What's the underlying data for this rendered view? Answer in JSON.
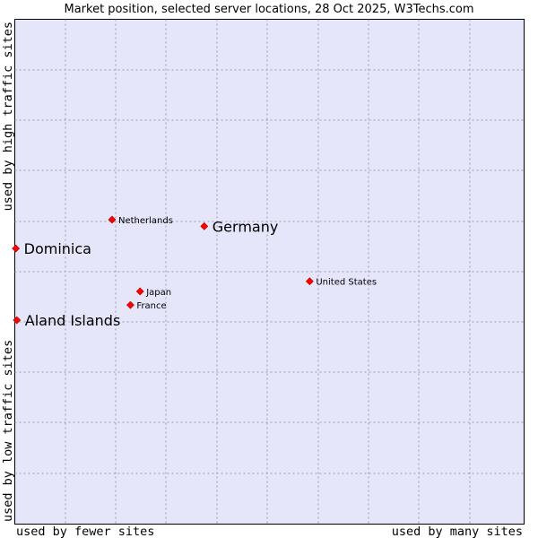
{
  "chart_data": {
    "type": "scatter",
    "title": "Market position, selected server locations, 28 Oct 2025, W3Techs.com",
    "xlabel_low": "used by fewer sites",
    "xlabel_high": "used by many sites",
    "ylabel_low": "used by low traffic sites",
    "ylabel_high": "used by high traffic sites",
    "xlim": [
      0,
      1
    ],
    "ylim": [
      0,
      1
    ],
    "grid": true,
    "point_color": "#ff0000",
    "plot_background": "#e6e6fa",
    "points": [
      {
        "label": "Netherlands",
        "x": 0.191,
        "y": 0.603,
        "size": "small"
      },
      {
        "label": "Germany",
        "x": 0.372,
        "y": 0.59,
        "size": "large"
      },
      {
        "label": "Dominica",
        "x": 0.002,
        "y": 0.546,
        "size": "large"
      },
      {
        "label": "United States",
        "x": 0.579,
        "y": 0.481,
        "size": "small"
      },
      {
        "label": "Japan",
        "x": 0.246,
        "y": 0.461,
        "size": "small"
      },
      {
        "label": "France",
        "x": 0.227,
        "y": 0.434,
        "size": "small"
      },
      {
        "label": "Aland Islands",
        "x": 0.004,
        "y": 0.404,
        "size": "large"
      }
    ]
  }
}
